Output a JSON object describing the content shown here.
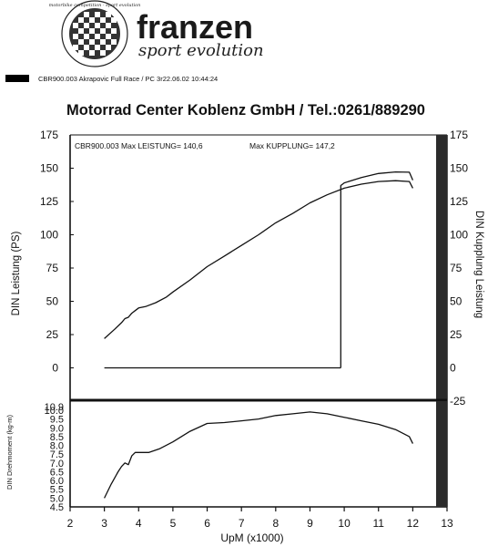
{
  "brand": {
    "name": "franzen",
    "tagline": "sport evolution",
    "seal_text": "motorbike competition · sport evolution"
  },
  "run_info": "CBR900.003   Akrapovic Full Race / PC 3r22.06.02 10:44:24",
  "header_title": "Motorrad Center Koblenz GmbH / Tel.:0261/889290",
  "chart_data": [
    {
      "type": "line",
      "annotation": "CBR900.003  Max LEISTUNG= 140,6",
      "annotation2": "Max KUPPLUNG= 147,2",
      "ylabel": "DIN Leistung (PS)",
      "ylabel_right": "DIN Kupplung Leistung",
      "ylim": [
        -25,
        175
      ],
      "yticks": [
        "175",
        "150",
        "125",
        "100",
        "75",
        "50",
        "25",
        "0"
      ],
      "yticks_right": [
        "175",
        "150",
        "125",
        "100",
        "75",
        "50",
        "25",
        "0",
        "-25"
      ],
      "xlim": [
        2,
        13
      ],
      "series": [
        {
          "key": "leistung",
          "x": [
            3.0,
            3.3,
            3.5,
            3.6,
            3.7,
            3.8,
            3.9,
            4.0,
            4.2,
            4.5,
            4.8,
            5.0,
            5.5,
            6.0,
            6.5,
            7.0,
            7.5,
            8.0,
            8.5,
            9.0,
            9.5,
            10.0,
            10.5,
            11.0,
            11.5,
            11.9,
            12.0
          ],
          "values": [
            22,
            29,
            34,
            37,
            38,
            41,
            43,
            45,
            46,
            49,
            53,
            57,
            66,
            76,
            84,
            92,
            100,
            109,
            116,
            124,
            130,
            135,
            138,
            140,
            140.6,
            140,
            135
          ]
        },
        {
          "key": "kupplung",
          "x": [
            9.9,
            9.9,
            10.0,
            10.5,
            11.0,
            11.5,
            11.9,
            12.0
          ],
          "values": [
            0,
            137,
            139,
            143,
            146,
            147.2,
            147,
            141
          ]
        },
        {
          "key": "zero",
          "x": [
            3.0,
            9.9
          ],
          "values": [
            0,
            0
          ]
        }
      ]
    },
    {
      "type": "line",
      "xlabel": "UpM (x1000)",
      "ylabel": "DIN Drehmoment (kg-m)",
      "xlim": [
        2,
        13
      ],
      "xticks": [
        "2",
        "3",
        "4",
        "5",
        "6",
        "7",
        "8",
        "9",
        "10",
        "11",
        "12",
        "13"
      ],
      "ylim": [
        4.5,
        10.0
      ],
      "yticks": [
        "10.0",
        "9.5",
        "9.0",
        "8.5",
        "8.0",
        "7.5",
        "7.0",
        "6.5",
        "6.0",
        "5.5",
        "5.0",
        "4.5"
      ],
      "ytick_extra": "10.9",
      "series": [
        {
          "key": "drehmoment",
          "x": [
            3.0,
            3.2,
            3.4,
            3.5,
            3.6,
            3.7,
            3.8,
            3.9,
            4.0,
            4.3,
            4.6,
            5.0,
            5.5,
            6.0,
            6.5,
            7.0,
            7.5,
            8.0,
            8.5,
            9.0,
            9.5,
            10.0,
            10.5,
            11.0,
            11.5,
            11.9,
            12.0
          ],
          "values": [
            5.0,
            5.8,
            6.5,
            6.8,
            7.0,
            6.9,
            7.4,
            7.6,
            7.6,
            7.6,
            7.8,
            8.2,
            8.8,
            9.25,
            9.3,
            9.4,
            9.5,
            9.7,
            9.8,
            9.9,
            9.8,
            9.6,
            9.4,
            9.2,
            8.9,
            8.5,
            8.1
          ]
        }
      ]
    }
  ]
}
